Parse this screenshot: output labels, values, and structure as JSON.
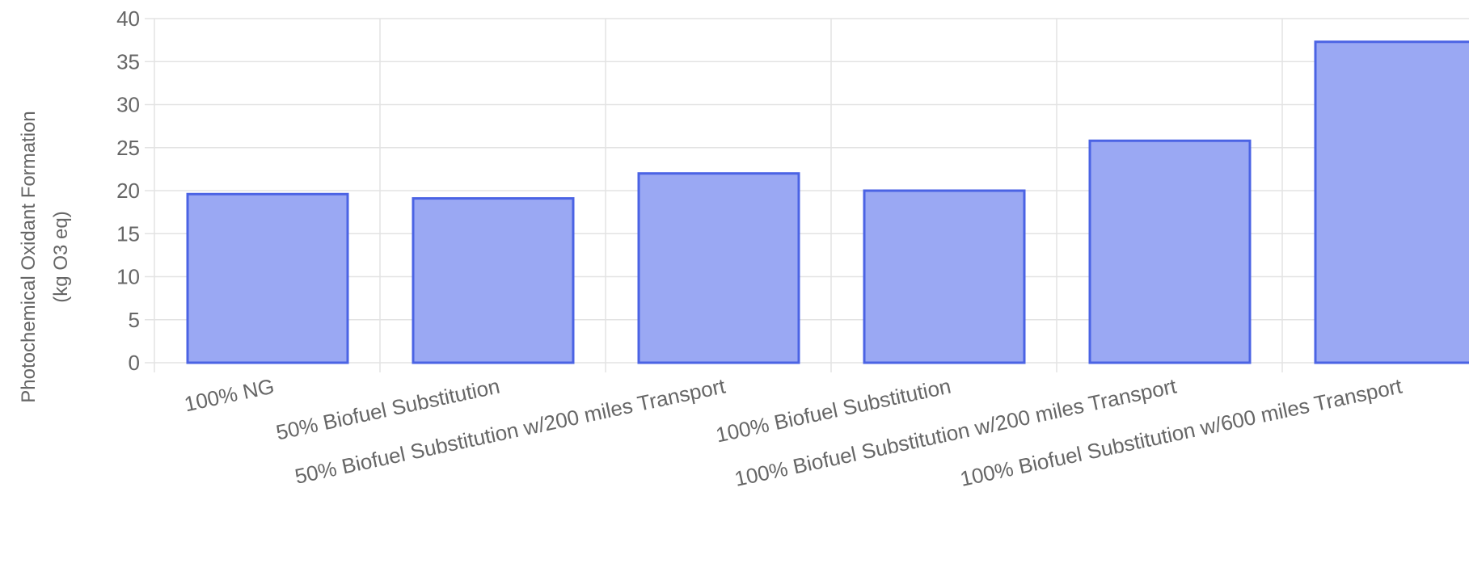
{
  "chart_data": {
    "type": "bar",
    "ylabel": [
      "Photochemical Oxidant Formation",
      "(kg O3 eq)"
    ],
    "ylim": [
      0,
      40
    ],
    "yticks": [
      "0",
      "5",
      "10",
      "15",
      "20",
      "25",
      "30",
      "35",
      "40"
    ],
    "grid": true,
    "categories": [
      "100% NG",
      "50% Biofuel Substitution",
      "50% Biofuel Substitution w/200 miles Transport",
      "100% Biofuel Substitution",
      "100% Biofuel Substitution w/200 miles Transport",
      "100% Biofuel Substitution w/600 miles Transport"
    ],
    "values": [
      19.6,
      19.1,
      22.0,
      20.0,
      25.8,
      37.3
    ],
    "colors": {
      "bar_fill": "#9aa8f3",
      "bar_stroke": "#4b63e4",
      "grid": "#e3e3e3",
      "text": "#666666"
    }
  }
}
